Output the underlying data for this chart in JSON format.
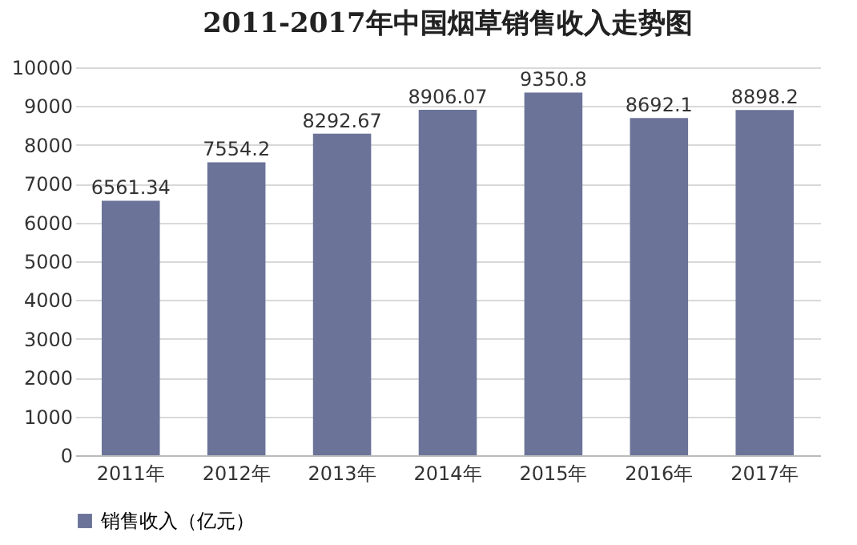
{
  "chart_data": {
    "type": "bar",
    "title": "2011-2017年中国烟草销售收入走势图",
    "categories": [
      "2011年",
      "2012年",
      "2013年",
      "2014年",
      "2015年",
      "2016年",
      "2017年"
    ],
    "series": [
      {
        "name": "销售收入（亿元）",
        "color": "#6b7399",
        "values": [
          6561.34,
          7554.2,
          8292.67,
          8906.07,
          9350.8,
          8692.1,
          8898.2
        ]
      }
    ],
    "ylim": [
      0,
      10000
    ],
    "yticks": [
      0,
      1000,
      2000,
      3000,
      4000,
      5000,
      6000,
      7000,
      8000,
      9000,
      10000
    ],
    "grid": "y",
    "legend": "bottom",
    "data_labels": true
  }
}
